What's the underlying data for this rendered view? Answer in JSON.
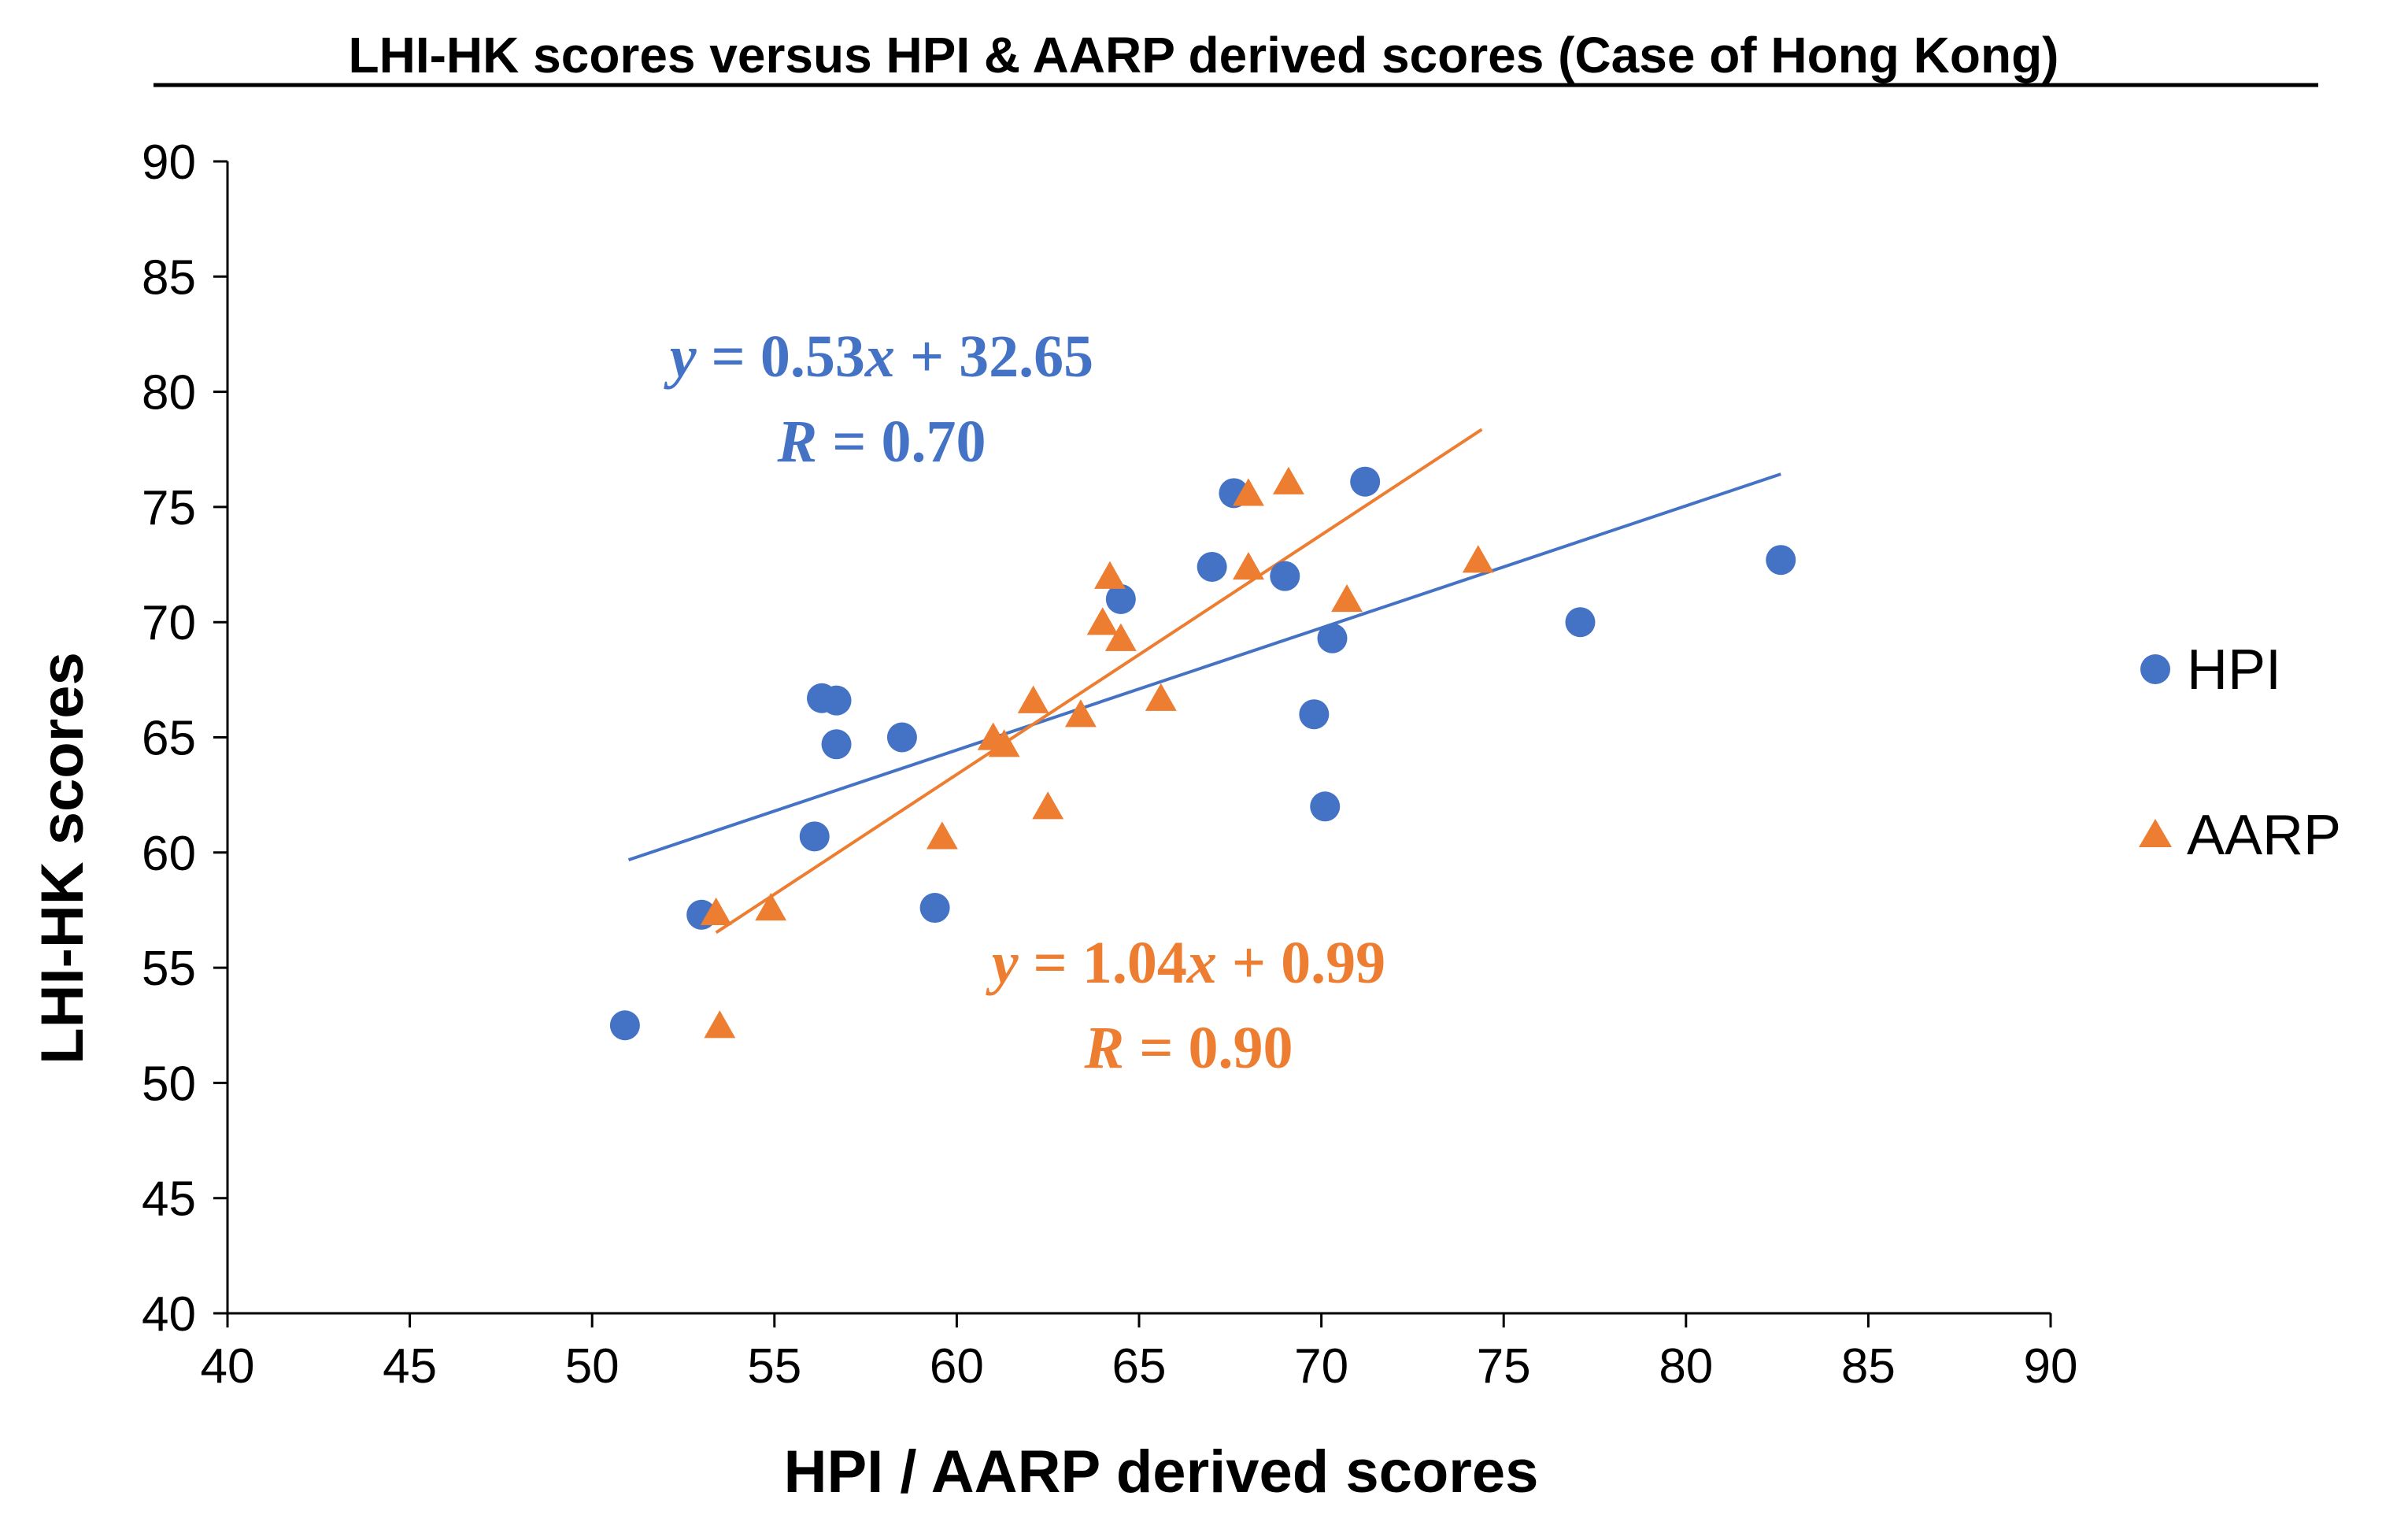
{
  "chart_data": {
    "type": "scatter",
    "title": "LHI-HK  scores versus HPI & AARP derived scores (Case of Hong Kong)",
    "xlabel": "HPI / AARP derived scores",
    "ylabel": "LHI-HK  scores",
    "xlim": [
      40,
      90
    ],
    "ylim": [
      40,
      90
    ],
    "x_ticks": [
      "40",
      "45",
      "50",
      "55",
      "60",
      "65",
      "70",
      "75",
      "80",
      "85",
      "90"
    ],
    "y_ticks": [
      "40",
      "45",
      "50",
      "55",
      "60",
      "65",
      "70",
      "75",
      "80",
      "85",
      "90"
    ],
    "grid": false,
    "legend_position": "right",
    "series": [
      {
        "name": "HPI",
        "marker": "circle",
        "color": "#4472C4",
        "points": [
          [
            50.9,
            52.5
          ],
          [
            53.0,
            57.3
          ],
          [
            56.1,
            60.7
          ],
          [
            56.3,
            66.7
          ],
          [
            56.7,
            66.6
          ],
          [
            56.7,
            64.7
          ],
          [
            58.5,
            65.0
          ],
          [
            59.4,
            57.6
          ],
          [
            64.5,
            71.0
          ],
          [
            67.0,
            72.4
          ],
          [
            67.6,
            75.6
          ],
          [
            69.0,
            72.0
          ],
          [
            69.8,
            66.0
          ],
          [
            70.1,
            62.0
          ],
          [
            70.3,
            69.3
          ],
          [
            71.2,
            76.1
          ],
          [
            77.1,
            70.0
          ],
          [
            82.6,
            72.7
          ]
        ],
        "trendline": {
          "slope": 0.53,
          "intercept": 32.65,
          "x_range": [
            51.0,
            82.6
          ],
          "equation_var": "y",
          "equation_rhs": " = 0.53",
          "equation_x": "x",
          "equation_tail": " + 32.65",
          "r_var": "R",
          "r_value": " = 0.70"
        }
      },
      {
        "name": "AARP",
        "marker": "triangle",
        "color": "#ED7D31",
        "points": [
          [
            53.4,
            57.4
          ],
          [
            53.5,
            52.5
          ],
          [
            54.9,
            57.6
          ],
          [
            59.6,
            60.7
          ],
          [
            61.0,
            65.0
          ],
          [
            61.3,
            64.7
          ],
          [
            62.1,
            66.6
          ],
          [
            62.5,
            62.0
          ],
          [
            63.4,
            66.0
          ],
          [
            64.0,
            70.0
          ],
          [
            64.2,
            72.0
          ],
          [
            64.5,
            69.3
          ],
          [
            65.6,
            66.7
          ],
          [
            68.0,
            75.6
          ],
          [
            68.0,
            72.4
          ],
          [
            69.1,
            76.1
          ],
          [
            70.7,
            71.0
          ],
          [
            74.3,
            72.7
          ]
        ],
        "trendline": {
          "slope": 1.04,
          "intercept": 0.99,
          "x_range": [
            53.4,
            74.4
          ],
          "equation_var": "y",
          "equation_rhs": " = 1.04",
          "equation_x": "x",
          "equation_tail": " + 0.99",
          "r_var": "R",
          "r_value": " = 0.90"
        }
      }
    ]
  }
}
